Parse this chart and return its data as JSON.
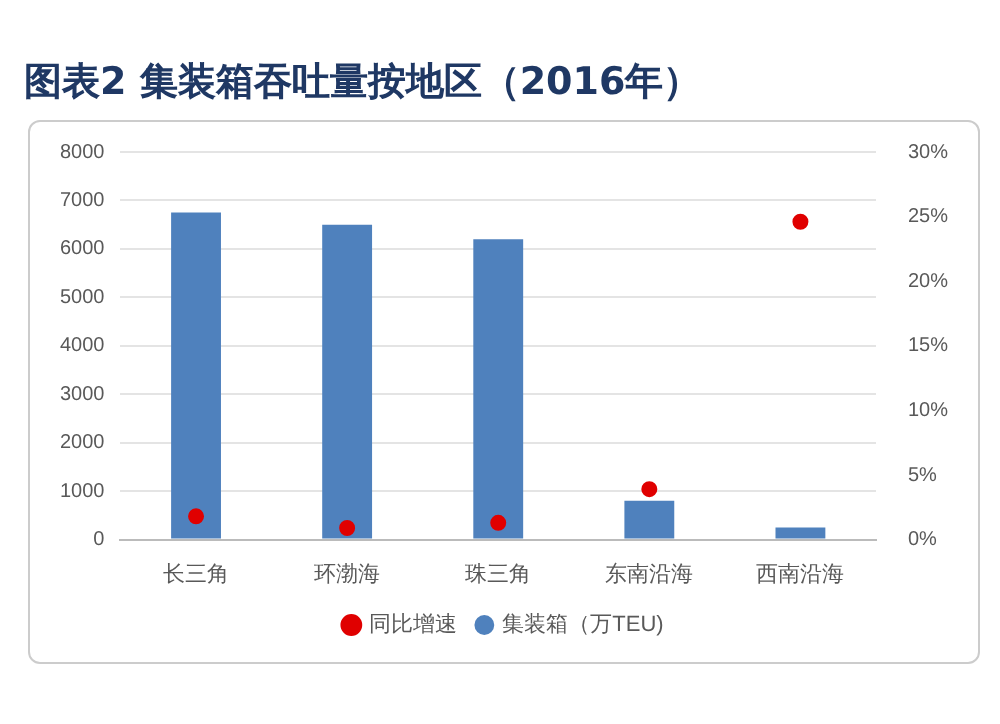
{
  "chart_data": {
    "type": "bar",
    "title": "图表2  集装箱吞吐量按地区（2016年）",
    "categories": [
      "长三角",
      "环渤海",
      "珠三角",
      "东南沿海",
      "西南沿海"
    ],
    "series": [
      {
        "name": "集装箱（万TEU)",
        "color": "#4f81bd",
        "values": [
          6750,
          6500,
          6200,
          800,
          250
        ]
      },
      {
        "name": "同比增速",
        "type": "scatter",
        "axis": "y2",
        "color": "#e00000",
        "values": [
          1.8,
          0.9,
          1.3,
          3.9,
          24.6
        ]
      }
    ],
    "ylim": [
      0,
      8000
    ],
    "yticks": [
      0,
      1000,
      2000,
      3000,
      4000,
      5000,
      6000,
      7000,
      8000
    ],
    "y2lim": [
      0,
      30
    ],
    "y2ticks": [
      {
        "value": 0,
        "label": "0%"
      },
      {
        "value": 5,
        "label": "5%"
      },
      {
        "value": 10,
        "label": "10%"
      },
      {
        "value": 15,
        "label": "15%"
      },
      {
        "value": 20,
        "label": "20%"
      },
      {
        "value": 25,
        "label": "25%"
      },
      {
        "value": 30,
        "label": "30%"
      }
    ],
    "grid": "y",
    "legend": "bottom",
    "marker": "circle"
  }
}
